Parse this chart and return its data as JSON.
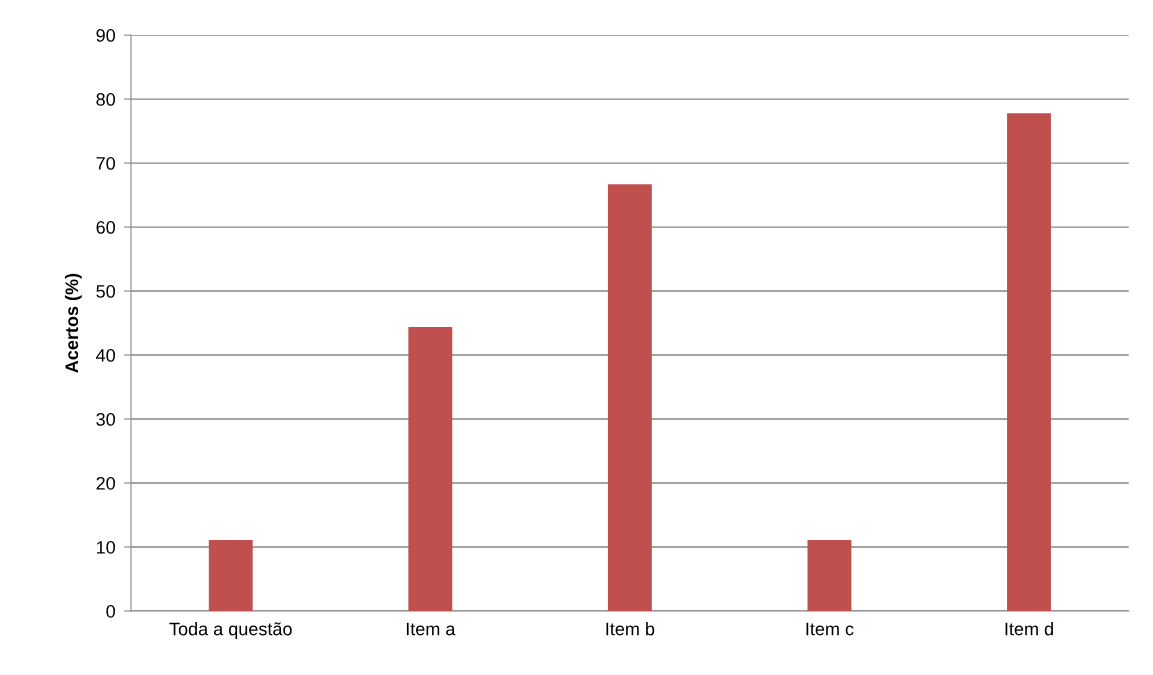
{
  "chart_data": {
    "type": "bar",
    "ylabel": "Acertos (%)",
    "categories": [
      "Toda a questão",
      "Item a",
      "Item b",
      "Item c",
      "Item d"
    ],
    "values": [
      11.1,
      44.4,
      66.7,
      11.1,
      77.8
    ],
    "color": "#c0504d",
    "ylim": [
      0,
      90
    ],
    "yticks": [
      0,
      10,
      20,
      30,
      40,
      50,
      60,
      70,
      80,
      90
    ],
    "grid": "y",
    "legend": false
  }
}
